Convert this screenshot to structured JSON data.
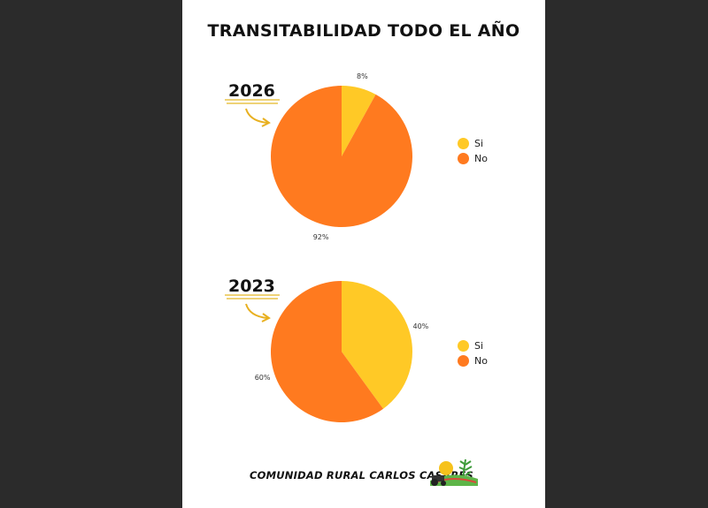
{
  "title": "TRANSITABILIDAD TODO EL AÑO",
  "footer": "COMUNIDAD RURAL CARLOS CASARES",
  "chart_data": [
    {
      "type": "pie",
      "year_label": "2026",
      "slices": [
        {
          "label": "Si",
          "value": 8,
          "pct_label": "8%",
          "color": "#FFC926"
        },
        {
          "label": "No",
          "value": 92,
          "pct_label": "92%",
          "color": "#FF7A1F"
        }
      ]
    },
    {
      "type": "pie",
      "year_label": "2023",
      "slices": [
        {
          "label": "Si",
          "value": 40,
          "pct_label": "40%",
          "color": "#FFC926"
        },
        {
          "label": "No",
          "value": 60,
          "pct_label": "60%",
          "color": "#FF7A1F"
        }
      ]
    }
  ]
}
